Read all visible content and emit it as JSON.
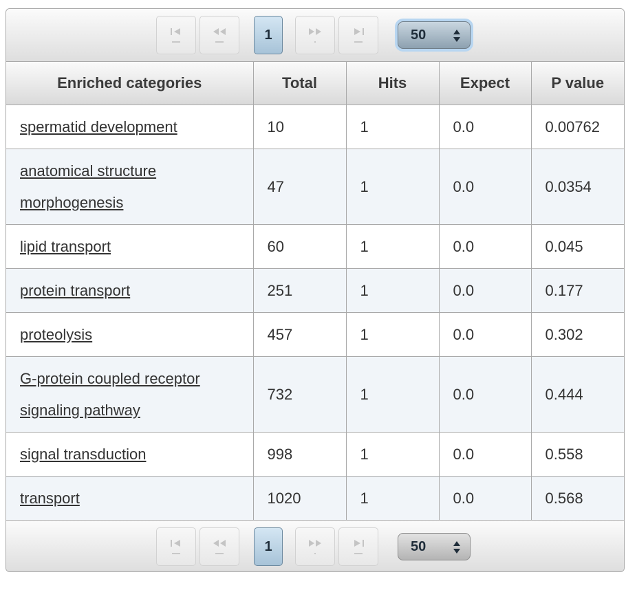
{
  "pager": {
    "current_page": "1",
    "page_size": "50",
    "buttons": [
      "first-page",
      "prev-page",
      "next-page",
      "last-page"
    ]
  },
  "table": {
    "headers": [
      "Enriched categories",
      "Total",
      "Hits",
      "Expect",
      "P value"
    ],
    "rows": [
      {
        "category": "spermatid development",
        "total": "10",
        "hits": "1",
        "expect": "0.0",
        "pvalue": "0.00762"
      },
      {
        "category": "anatomical structure morphogenesis",
        "total": "47",
        "hits": "1",
        "expect": "0.0",
        "pvalue": "0.0354"
      },
      {
        "category": "lipid transport",
        "total": "60",
        "hits": "1",
        "expect": "0.0",
        "pvalue": "0.045"
      },
      {
        "category": "protein transport",
        "total": "251",
        "hits": "1",
        "expect": "0.0",
        "pvalue": "0.177"
      },
      {
        "category": "proteolysis",
        "total": "457",
        "hits": "1",
        "expect": "0.0",
        "pvalue": "0.302"
      },
      {
        "category": "G-protein coupled receptor signaling pathway",
        "total": "732",
        "hits": "1",
        "expect": "0.0",
        "pvalue": "0.444"
      },
      {
        "category": "signal transduction",
        "total": "998",
        "hits": "1",
        "expect": "0.0",
        "pvalue": "0.558"
      },
      {
        "category": "transport",
        "total": "1020",
        "hits": "1",
        "expect": "0.0",
        "pvalue": "0.568"
      }
    ]
  }
}
